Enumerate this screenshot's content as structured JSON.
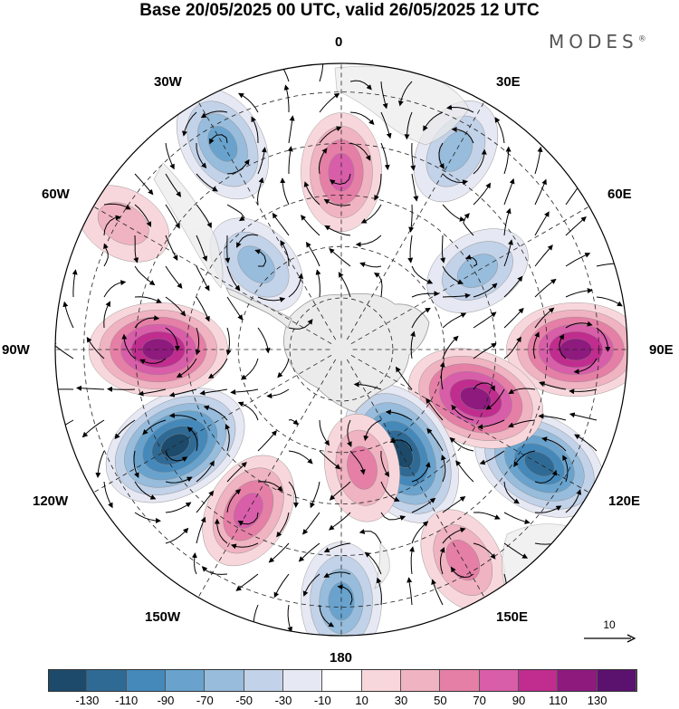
{
  "title": "Base 20/05/2025 00 UTC, valid 26/05/2025 12 UTC",
  "brand": "MODES",
  "brand_mark": "®",
  "longitude_labels": {
    "lon_0": "0",
    "lon_30e": "30E",
    "lon_60e": "60E",
    "lon_90e": "90E",
    "lon_120e": "120E",
    "lon_150e": "150E",
    "lon_180": "180",
    "lon_150w": "150W",
    "lon_120w": "120W",
    "lon_90w": "90W",
    "lon_60w": "60W",
    "lon_30w": "30W"
  },
  "reference_vector": {
    "label": "10"
  },
  "colorbar": {
    "colors": [
      "#1d4a6b",
      "#2f6a95",
      "#4589bb",
      "#69a3cd",
      "#97bcdc",
      "#c2d2e8",
      "#e6e8f3",
      "#ffffff",
      "#f8d7dc",
      "#f0b3c1",
      "#e57fa6",
      "#d85ea9",
      "#c02d8e",
      "#8e1a7e",
      "#5b116e"
    ],
    "tick_labels": [
      "-130",
      "-110",
      "-90",
      "-70",
      "-50",
      "-30",
      "-10",
      "10",
      "30",
      "50",
      "70",
      "90",
      "110",
      "130"
    ]
  },
  "map": {
    "projection": "south polar stereographic",
    "field_centers": [
      {
        "lon": 0,
        "colat": 0.62,
        "value": 70
      },
      {
        "lon": 30,
        "colat": 0.8,
        "value": -50
      },
      {
        "lon": 60,
        "colat": 0.55,
        "value": -50
      },
      {
        "lon": 90,
        "colat": 0.82,
        "value": 110
      },
      {
        "lon": 120,
        "colat": 0.8,
        "value": -110
      },
      {
        "lon": 110,
        "colat": 0.5,
        "value": 110
      },
      {
        "lon": 150,
        "colat": 0.42,
        "value": -130
      },
      {
        "lon": 170,
        "colat": 0.42,
        "value": 50
      },
      {
        "lon": 180,
        "colat": 0.88,
        "value": -70
      },
      {
        "lon": 150,
        "colat": 0.85,
        "value": 50
      },
      {
        "lon": 210,
        "colat": 0.65,
        "value": 70
      },
      {
        "lon": 240,
        "colat": 0.67,
        "value": -130
      },
      {
        "lon": 270,
        "colat": 0.64,
        "value": 110
      },
      {
        "lon": 300,
        "colat": 0.88,
        "value": 30
      },
      {
        "lon": 330,
        "colat": 0.83,
        "value": -70
      },
      {
        "lon": 315,
        "colat": 0.42,
        "value": -50
      }
    ]
  }
}
